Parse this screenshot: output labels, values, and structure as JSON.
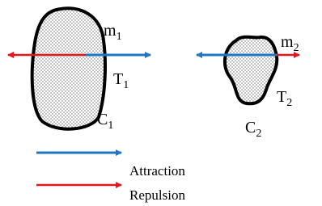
{
  "bodies": [
    {
      "mass": {
        "main": "m",
        "sub": "1"
      },
      "tension": {
        "main": "T",
        "sub": "1"
      },
      "contour": {
        "main": "C",
        "sub": "1"
      }
    },
    {
      "mass": {
        "main": "m",
        "sub": "2"
      },
      "tension": {
        "main": "T",
        "sub": "2"
      },
      "contour": {
        "main": "C",
        "sub": "2"
      }
    }
  ],
  "legend": [
    {
      "label": "Attraction"
    },
    {
      "label": "Repulsion"
    }
  ]
}
